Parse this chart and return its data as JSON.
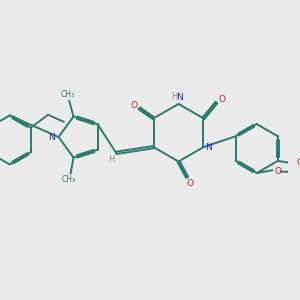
{
  "bg_color": "#ebebeb",
  "bond_color": "#2d7a6e",
  "n_color": "#2222cc",
  "o_color": "#cc2222",
  "h_color": "#888888",
  "lw": 1.4,
  "dbgap": 0.035,
  "xlim": [
    0,
    10
  ],
  "ylim": [
    0,
    10
  ]
}
